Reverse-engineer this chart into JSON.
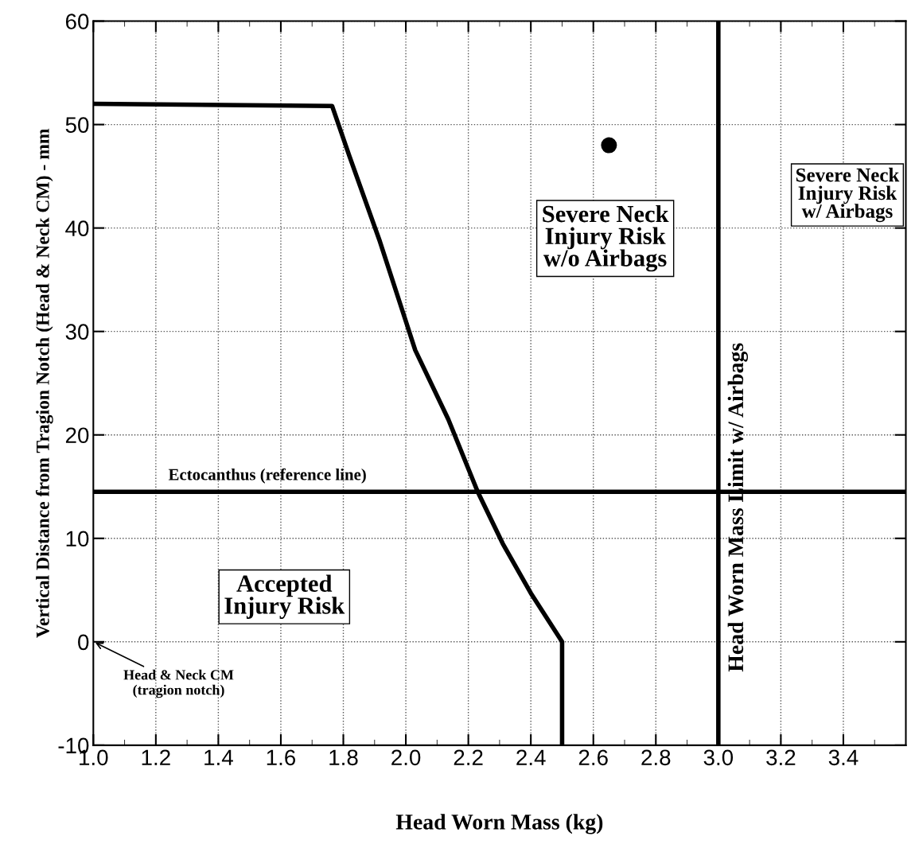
{
  "chart_data": {
    "type": "line",
    "xlabel": "Head Worn Mass (kg)",
    "ylabel": "Vertical Distance from Tragion Notch (Head & Neck CM) - mm",
    "series": [
      {
        "color": "#000000",
        "x": [
          1.0,
          1.764,
          1.82,
          1.917,
          2.03,
          2.136,
          2.23,
          2.31,
          2.4,
          2.5,
          2.5
        ],
        "values": [
          52,
          51.8,
          46.9,
          38.7,
          28.2,
          21.5,
          14.5,
          9.5,
          4.7,
          0,
          -10
        ]
      },
      {
        "type": "scatter",
        "color": "#000000",
        "x": [
          2.65
        ],
        "values": [
          48
        ],
        "marker": "circle"
      }
    ],
    "ref_lines": [
      {
        "axis": "y",
        "value": 14.5,
        "label": "Ectocanthus (reference line)",
        "color": "#000000"
      },
      {
        "axis": "x",
        "value": 3.0,
        "label": "Head Worn Mass Limit w/ Airbags",
        "color": "#000000"
      }
    ],
    "annotations": [
      "Severe Neck\nInjury Risk\nw/o Airbags",
      "Severe Neck\nInjury Risk\nw/ Airbags",
      "Accepted\nInjury Risk",
      "Head & Neck CM\n(tragion notch)"
    ],
    "xlim": [
      1.0,
      3.6
    ],
    "ylim": [
      -10,
      60
    ],
    "xticks": [
      {
        "value": 1,
        "label": "1.0"
      },
      1.2,
      1.4,
      1.6,
      1.8,
      {
        "value": 2,
        "label": "2.0"
      },
      2.2,
      2.4,
      2.6,
      2.8,
      {
        "value": 3,
        "label": "3.0"
      },
      3.2,
      3.4
    ],
    "yticks": [
      -10,
      0,
      10,
      20,
      30,
      40,
      50,
      60
    ],
    "grid": true,
    "line_style": "solid"
  }
}
